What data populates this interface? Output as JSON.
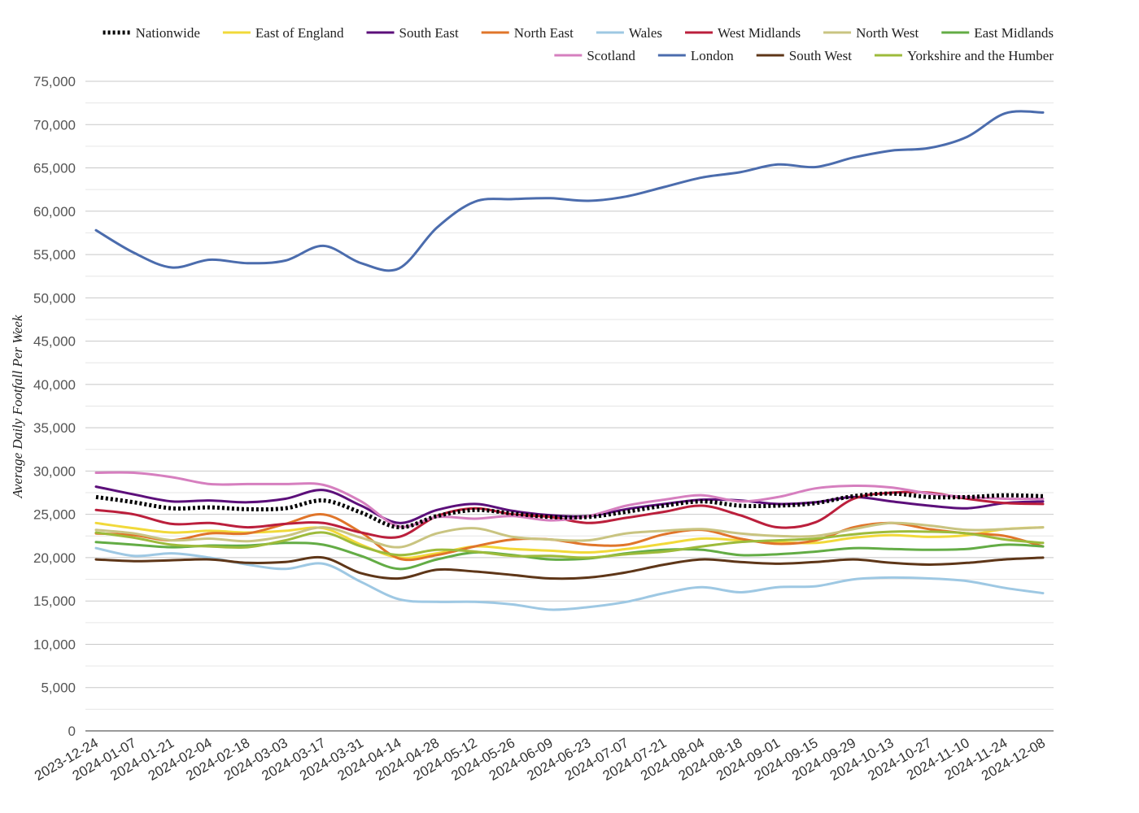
{
  "chart_data": {
    "type": "line",
    "ylabel": "Average Daily Footfall Per Week",
    "xlabel": "",
    "ylim": [
      0,
      75000
    ],
    "yticks": [
      0,
      5000,
      10000,
      15000,
      20000,
      25000,
      30000,
      35000,
      40000,
      45000,
      50000,
      55000,
      60000,
      65000,
      70000,
      75000
    ],
    "ytick_labels": [
      "0",
      "5,000",
      "10,000",
      "15,000",
      "20,000",
      "25,000",
      "30,000",
      "35,000",
      "40,000",
      "45,000",
      "50,000",
      "55,000",
      "60,000",
      "65,000",
      "70,000",
      "75,000"
    ],
    "x_ticks": [
      "2023-12-24",
      "2024-01-07",
      "2024-01-21",
      "2024-02-04",
      "2024-02-18",
      "2024-03-03",
      "2024-03-17",
      "2024-03-31",
      "2024-04-14",
      "2024-04-28",
      "2024-05-12",
      "2024-05-26",
      "2024-06-09",
      "2024-06-23",
      "2024-07-07",
      "2024-07-21",
      "2024-08-04",
      "2024-08-18",
      "2024-09-01",
      "2024-09-15",
      "2024-09-29",
      "2024-10-13",
      "2024-10-27",
      "2024-11-10",
      "2024-11-24",
      "2024-12-08"
    ],
    "grid": true,
    "legend_position": "top",
    "series": [
      {
        "name": "Nationwide",
        "color": "#000000",
        "dashed": true,
        "values": [
          27000,
          26400,
          25700,
          25800,
          25600,
          25700,
          26600,
          25200,
          23500,
          24800,
          25500,
          25100,
          24700,
          24700,
          25300,
          26000,
          26500,
          26000,
          26000,
          26300,
          27100,
          27400,
          27000,
          27000,
          27200,
          27100
        ]
      },
      {
        "name": "East of England",
        "color": "#f1d93a",
        "dashed": false,
        "values": [
          24000,
          23400,
          22900,
          23100,
          22900,
          23100,
          23400,
          21500,
          20000,
          20500,
          21300,
          21000,
          20800,
          20600,
          21000,
          21600,
          22200,
          22000,
          21800,
          21700,
          22300,
          22600,
          22400,
          22600,
          23300,
          23500
        ]
      },
      {
        "name": "South East",
        "color": "#5c0f7a",
        "dashed": false,
        "values": [
          28200,
          27300,
          26500,
          26600,
          26400,
          26800,
          27800,
          26000,
          24000,
          25500,
          26200,
          25400,
          24900,
          24800,
          25600,
          26200,
          26700,
          26600,
          26200,
          26400,
          27000,
          26500,
          26000,
          25700,
          26300,
          26500
        ]
      },
      {
        "name": "North East",
        "color": "#e0752a",
        "dashed": false,
        "values": [
          22800,
          22600,
          22000,
          22800,
          22800,
          23900,
          25000,
          22900,
          19900,
          20300,
          21300,
          22100,
          22100,
          21500,
          21500,
          22700,
          23200,
          22200,
          21600,
          22000,
          23500,
          24000,
          23300,
          22800,
          22500,
          21300
        ]
      },
      {
        "name": "Wales",
        "color": "#9ec8e3",
        "dashed": false,
        "values": [
          21100,
          20200,
          20500,
          20000,
          19200,
          18700,
          19300,
          17200,
          15200,
          14900,
          14900,
          14600,
          14000,
          14300,
          14900,
          15900,
          16600,
          16000,
          16600,
          16700,
          17500,
          17700,
          17600,
          17300,
          16500,
          15900
        ]
      },
      {
        "name": "West Midlands",
        "color": "#bb1f3c",
        "dashed": false,
        "values": [
          25500,
          25000,
          23900,
          24000,
          23500,
          23900,
          24000,
          22900,
          22400,
          24800,
          25700,
          25000,
          24700,
          24000,
          24600,
          25300,
          26000,
          24900,
          23500,
          24100,
          26800,
          27500,
          27500,
          26800,
          26300,
          26200
        ]
      },
      {
        "name": "North West",
        "color": "#c9c481",
        "dashed": false,
        "values": [
          23200,
          22800,
          22000,
          22200,
          21900,
          22500,
          23500,
          22300,
          21200,
          22800,
          23400,
          22400,
          22100,
          22000,
          22800,
          23100,
          23300,
          22800,
          22500,
          22500,
          23300,
          24000,
          23700,
          23200,
          23300,
          23500
        ]
      },
      {
        "name": "East Midlands",
        "color": "#63ac45",
        "dashed": false,
        "values": [
          21800,
          21500,
          21200,
          21400,
          21400,
          21700,
          21500,
          20200,
          18700,
          19800,
          20600,
          20300,
          19800,
          19900,
          20500,
          20900,
          20900,
          20300,
          20400,
          20700,
          21100,
          21000,
          20900,
          21000,
          21500,
          21300
        ]
      },
      {
        "name": "Scotland",
        "color": "#d67fbf",
        "dashed": false,
        "values": [
          29800,
          29800,
          29300,
          28500,
          28500,
          28500,
          28400,
          26500,
          23600,
          24700,
          24500,
          24800,
          24300,
          24800,
          26000,
          26700,
          27200,
          26500,
          27000,
          28000,
          28300,
          28100,
          27400,
          27000,
          26800,
          26800
        ]
      },
      {
        "name": "London",
        "color": "#4b6cad",
        "dashed": false,
        "values": [
          57800,
          55200,
          53500,
          54400,
          54000,
          54300,
          56000,
          54000,
          53400,
          58100,
          61100,
          61400,
          61500,
          61200,
          61700,
          62800,
          63900,
          64500,
          65400,
          65100,
          66200,
          67000,
          67300,
          68600,
          71300,
          71400
        ]
      },
      {
        "name": "South West",
        "color": "#5e3618",
        "dashed": false,
        "values": [
          19800,
          19600,
          19700,
          19800,
          19400,
          19500,
          20000,
          18200,
          17600,
          18600,
          18400,
          18000,
          17600,
          17700,
          18300,
          19200,
          19800,
          19500,
          19300,
          19500,
          19800,
          19400,
          19200,
          19400,
          19800,
          20000
        ]
      },
      {
        "name": "Yorkshire and the Humber",
        "color": "#9dbb3b",
        "dashed": false,
        "values": [
          22900,
          22300,
          21500,
          21300,
          21200,
          22000,
          22900,
          21300,
          20300,
          20900,
          20700,
          20200,
          20200,
          20000,
          20400,
          20700,
          21300,
          21800,
          22000,
          22200,
          22700,
          23000,
          23000,
          22800,
          22100,
          21700
        ]
      }
    ]
  }
}
